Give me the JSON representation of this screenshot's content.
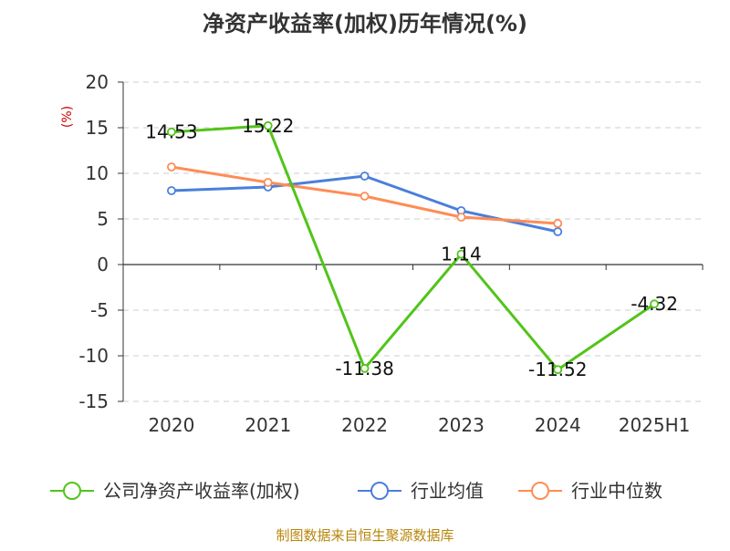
{
  "chart_data": {
    "type": "line",
    "title": "净资产收益率(加权)历年情况(%)",
    "ylabel": "(%)",
    "xlabel": "",
    "categories": [
      "2020",
      "2021",
      "2022",
      "2023",
      "2024",
      "2025H1"
    ],
    "ylim": [
      -15,
      20
    ],
    "yticks": [
      20,
      15,
      10,
      5,
      0,
      -5,
      -10,
      -15
    ],
    "ytick_labels": [
      "20",
      "15",
      "10",
      "5",
      "0",
      "-5",
      "-10",
      "-15"
    ],
    "grid": true,
    "legend_position": "bottom",
    "series": [
      {
        "name": "公司净资产收益率(加权)",
        "color": "#52c41a",
        "values": [
          14.53,
          15.22,
          -11.38,
          1.14,
          -11.52,
          -4.32
        ],
        "data_labels": [
          "14.53",
          "15.22",
          "-11.38",
          "1.14",
          "-11.52",
          "-4.32"
        ]
      },
      {
        "name": "行业均值",
        "color": "#4a7fdb",
        "values": [
          8.1,
          8.5,
          9.7,
          5.9,
          3.6,
          null
        ]
      },
      {
        "name": "行业中位数",
        "color": "#ff8c55",
        "values": [
          10.7,
          9.0,
          7.5,
          5.2,
          4.5,
          null
        ]
      }
    ]
  },
  "footer": {
    "source": "制图数据来自恒生聚源数据库"
  }
}
